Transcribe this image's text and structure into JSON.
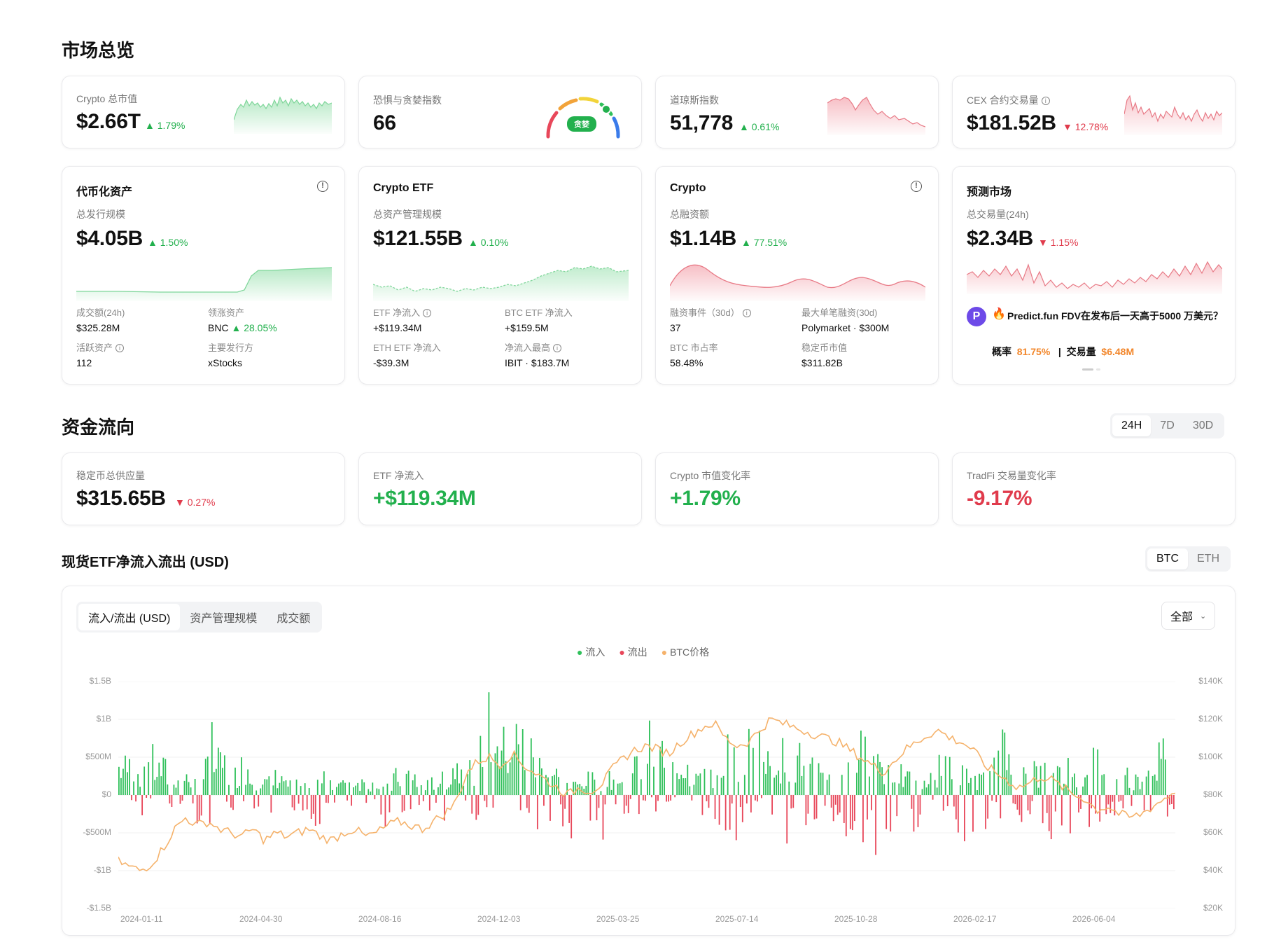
{
  "market": {
    "title": "市场总览",
    "cards": [
      {
        "label": "Crypto 总市值",
        "value": "$2.66T",
        "change": "1.79%",
        "dir": "up"
      },
      {
        "label": "恐惧与贪婪指数",
        "value": "66",
        "badge": "贪婪"
      },
      {
        "label": "道琼斯指数",
        "value": "51,778",
        "change": "0.61%",
        "dir": "up"
      },
      {
        "label": "CEX 合约交易量",
        "value": "$181.52B",
        "change": "12.78%",
        "dir": "down"
      }
    ]
  },
  "tokenized": {
    "title": "代币化资产",
    "sublabel": "总发行规模",
    "value": "$4.05B",
    "change": "1.50%",
    "stats": [
      {
        "label": "成交额(24h)",
        "value": "$325.28M"
      },
      {
        "label": "领涨资产",
        "value": "BNC",
        "extra": "28.05%"
      },
      {
        "label": "活跃资产",
        "value": "112"
      },
      {
        "label": "主要发行方",
        "value": "xStocks"
      }
    ]
  },
  "etf": {
    "title": "Crypto ETF",
    "sublabel": "总资产管理规模",
    "value": "$121.55B",
    "change": "0.10%",
    "stats": [
      {
        "label": "ETF 净流入",
        "value": "+$119.34M"
      },
      {
        "label": "BTC ETF 净流入",
        "value": "+$159.5M"
      },
      {
        "label": "ETH ETF 净流入",
        "value": "-$39.3M"
      },
      {
        "label": "净流入最高",
        "value": "IBIT · $183.7M"
      }
    ]
  },
  "crypto": {
    "title": "Crypto",
    "sublabel": "总融资额",
    "value": "$1.14B",
    "change": "77.51%",
    "stats": [
      {
        "label": "融资事件（30d）",
        "value": "37"
      },
      {
        "label": "最大单笔融资(30d)",
        "value": "Polymarket · $300M"
      },
      {
        "label": "BTC 市占率",
        "value": "58.48%"
      },
      {
        "label": "稳定币市值",
        "value": "$311.82B"
      }
    ]
  },
  "prediction": {
    "title": "预测市场",
    "sublabel": "总交易量(24h)",
    "value": "$2.34B",
    "change": "1.15%",
    "item_text": "Predict.fun FDV在发布后一天高于5000 万美元？",
    "prob_label": "概率",
    "prob_value": "81.75%",
    "vol_label": "交易量",
    "vol_value": "$6.48M"
  },
  "flow": {
    "title": "资金流向",
    "periods": [
      "24H",
      "7D",
      "30D"
    ],
    "cards": [
      {
        "label": "稳定币总供应量",
        "value": "$315.65B",
        "change": "0.27%",
        "dir": "down"
      },
      {
        "label": "ETF 净流入",
        "value": "+$119.34M"
      },
      {
        "label": "Crypto 市值变化率",
        "value": "+1.79%"
      },
      {
        "label": "TradFi 交易量变化率",
        "value": "-9.17%"
      }
    ]
  },
  "etf_chart": {
    "title": "现货ETF净流入流出 (USD)",
    "assets": [
      "BTC",
      "ETH"
    ],
    "tabs": [
      "流入/流出 (USD)",
      "资产管理规模",
      "成交额"
    ],
    "range": "全部",
    "legend": [
      "流入",
      "流出",
      "BTC价格"
    ],
    "colors": {
      "inflow": "#2fc05a",
      "outflow": "#e8475a",
      "price": "#f5b26b"
    }
  },
  "chart_data": {
    "type": "bar",
    "y_left_ticks": [
      "$1.5B",
      "$1B",
      "$500M",
      "$0",
      "-$500M",
      "-$1B",
      "-$1.5B"
    ],
    "y_right_ticks": [
      "$140K",
      "$120K",
      "$100K",
      "$80K",
      "$60K",
      "$40K",
      "$20K"
    ],
    "x_ticks": [
      "2024-01-11",
      "2024-04-30",
      "2024-08-16",
      "2024-12-03",
      "2025-03-25",
      "2025-07-14",
      "2025-10-28",
      "2026-02-17",
      "2026-06-04"
    ],
    "ylim": [
      -1.5,
      1.5
    ],
    "ylim_right": [
      20,
      140
    ],
    "flow_profile_billions": [
      0.55,
      0.45,
      0.65,
      0.5,
      0.35,
      0.3,
      0.25,
      0.95,
      0.6,
      0.4,
      0.55,
      0.3,
      0.25,
      0.35,
      0.2,
      0.15,
      0.35,
      0.3,
      0.2,
      0.3,
      0.25,
      0.2,
      0.15,
      0.35,
      0.4,
      0.2,
      0.25,
      0.3,
      0.55,
      0.6,
      0.8,
      1.35,
      0.9,
      1.05,
      0.8,
      0.6,
      0.4,
      0.3,
      0.2,
      0.3,
      0.25,
      0.3,
      0.25,
      0.6,
      1.0,
      0.8,
      0.5,
      0.65,
      0.4,
      0.55,
      0.3,
      0.85,
      0.7,
      0.95,
      0.6,
      0.75,
      0.55,
      0.7,
      0.5,
      0.6,
      0.75,
      0.5,
      0.85,
      1.15,
      0.6,
      0.4,
      0.3,
      0.2,
      0.3,
      0.7,
      0.5,
      0.4,
      0.3,
      0.5,
      0.85,
      0.55,
      0.4,
      0.45,
      0.35,
      0.55,
      0.4,
      0.3,
      0.65,
      0.35,
      0.4,
      0.3,
      0.5,
      0.75,
      0.55
    ],
    "outflow_profile_billions": [
      -0.15,
      -0.25,
      -0.1,
      -0.3,
      -0.2,
      -0.15,
      -0.35,
      -0.45,
      -0.3,
      -0.2,
      -0.25,
      -0.55,
      -0.3,
      -0.15,
      -0.25,
      -0.2,
      -0.45,
      -0.3,
      -0.15,
      -0.2,
      -0.35,
      -0.25,
      -0.4,
      -0.3,
      -0.25,
      -0.15,
      -0.2,
      -0.45,
      -0.35,
      -0.25,
      -0.3,
      -0.2,
      -0.35,
      -0.25,
      -0.4,
      -0.55,
      -0.7,
      -0.45,
      -1.0,
      -0.8,
      -0.6,
      -0.4,
      -0.3,
      -0.25,
      -0.15,
      -0.2,
      -0.1,
      -0.15,
      -0.2,
      -0.25,
      -0.4,
      -0.55,
      -0.35,
      -0.25,
      -0.2,
      -0.5,
      -0.65,
      -0.45,
      -0.3,
      -0.2,
      -0.4,
      -0.8,
      -0.6,
      -0.9,
      -0.7,
      -0.85,
      -0.6,
      -0.5,
      -0.3,
      -0.2,
      -0.5,
      -0.65,
      -0.45,
      -0.35,
      -0.4,
      -0.5,
      -0.35,
      -0.45,
      -0.55,
      -0.65,
      -0.55,
      -0.6,
      -0.4,
      -0.3,
      -0.2,
      -0.35,
      -0.45,
      -0.5,
      -0.3
    ],
    "btc_price_k": [
      45,
      42,
      40,
      44,
      52,
      62,
      68,
      64,
      66,
      62,
      60,
      58,
      62,
      56,
      60,
      58,
      60,
      62,
      58,
      56,
      60,
      62,
      58,
      60,
      64,
      66,
      64,
      62,
      66,
      70,
      76,
      92,
      98,
      100,
      96,
      102,
      96,
      92,
      88,
      84,
      80,
      84,
      82,
      86,
      94,
      100,
      104,
      106,
      104,
      102,
      108,
      112,
      116,
      118,
      110,
      106,
      108,
      114,
      120,
      118,
      116,
      114,
      112,
      110,
      108,
      104,
      100,
      96,
      92,
      98,
      104,
      108,
      112,
      114,
      110,
      108,
      104,
      96,
      92,
      88,
      84,
      86,
      90,
      88,
      84,
      80,
      78,
      72,
      74,
      70,
      68,
      70,
      74,
      78,
      82
    ]
  }
}
